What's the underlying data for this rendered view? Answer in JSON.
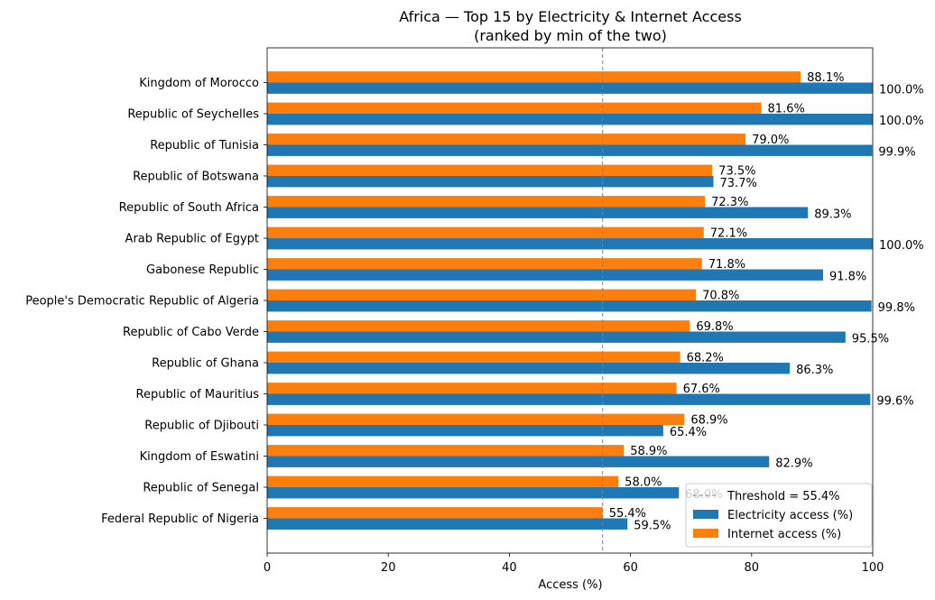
{
  "chart_data": {
    "type": "bar",
    "orientation": "horizontal",
    "title": "Africa — Top 15 by Electricity & Internet Access",
    "subtitle": "(ranked by min of the two)",
    "xlabel": "Access (%)",
    "ylabel": "",
    "xlim": [
      0,
      100
    ],
    "x_ticks": [
      "0",
      "20",
      "40",
      "60",
      "80",
      "100"
    ],
    "categories": [
      "Kingdom of Morocco",
      "Republic of Seychelles",
      "Republic of Tunisia",
      "Republic of Botswana",
      "Republic of South Africa",
      "Arab Republic of Egypt",
      "Gabonese Republic",
      "People's Democratic Republic of Algeria",
      "Republic of Cabo Verde",
      "Republic of Ghana",
      "Republic of Mauritius",
      "Republic of Djibouti",
      "Kingdom of Eswatini",
      "Republic of Senegal",
      "Federal Republic of Nigeria"
    ],
    "series": [
      {
        "name": "Electricity access (%)",
        "color": "#1f77b4",
        "values": [
          100.0,
          100.0,
          99.9,
          73.7,
          89.3,
          100.0,
          91.8,
          99.8,
          95.5,
          86.3,
          99.6,
          65.4,
          82.9,
          68.0,
          59.5
        ],
        "labels": [
          "100.0%",
          "100.0%",
          "99.9%",
          "73.7%",
          "89.3%",
          "100.0%",
          "91.8%",
          "99.8%",
          "95.5%",
          "86.3%",
          "99.6%",
          "65.4%",
          "82.9%",
          "68.0%",
          "59.5%"
        ]
      },
      {
        "name": "Internet access (%)",
        "color": "#ff7f0e",
        "values": [
          88.1,
          81.6,
          79.0,
          73.5,
          72.3,
          72.1,
          71.8,
          70.8,
          69.8,
          68.2,
          67.6,
          68.9,
          58.9,
          58.0,
          55.4
        ],
        "labels": [
          "88.1%",
          "81.6%",
          "79.0%",
          "73.5%",
          "72.3%",
          "72.1%",
          "71.8%",
          "70.8%",
          "69.8%",
          "68.2%",
          "67.6%",
          "68.9%",
          "58.9%",
          "58.0%",
          "55.4%"
        ]
      }
    ],
    "threshold": {
      "value": 55.4,
      "label": "Threshold = 55.4%",
      "color": "#808080",
      "style": "dashed"
    },
    "legend": {
      "position": "lower-right"
    },
    "grid": false
  }
}
